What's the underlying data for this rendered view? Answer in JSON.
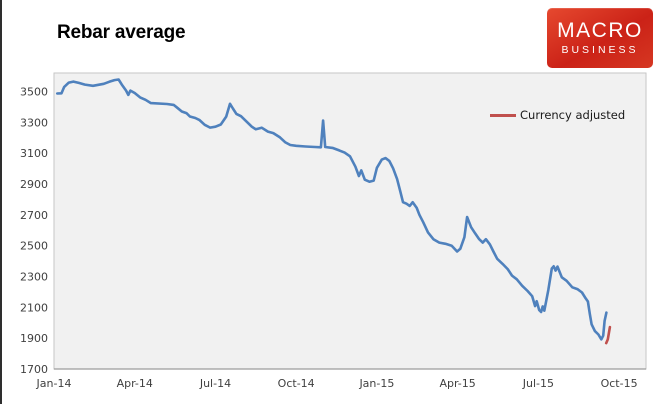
{
  "page": {
    "title": "Rebar average"
  },
  "logo": {
    "line1": "MACRO",
    "line2": "BUSINESS",
    "bg_color": "#cb2217",
    "text_color": "#ffffff"
  },
  "legend": {
    "label": "Currency adjusted",
    "color": "#c0504d"
  },
  "chart_data": {
    "type": "line",
    "title": "Rebar average",
    "xlabel": "",
    "ylabel": "",
    "grid": false,
    "legend_position": "inside-top-right",
    "plot_bg": "#f1f1f1",
    "plot_border": "#c6c6c6",
    "axis_text_color": "#3f3f3f",
    "x_range": [
      0,
      22
    ],
    "y_range": [
      1700,
      3620
    ],
    "x_unit": "months since Jan-2014",
    "x_ticks": [
      {
        "pos": 0,
        "label": "Jan-14"
      },
      {
        "pos": 3,
        "label": "Apr-14"
      },
      {
        "pos": 6,
        "label": "Jul-14"
      },
      {
        "pos": 9,
        "label": "Oct-14"
      },
      {
        "pos": 12,
        "label": "Jan-15"
      },
      {
        "pos": 15,
        "label": "Apr-15"
      },
      {
        "pos": 18,
        "label": "Jul-15"
      },
      {
        "pos": 21,
        "label": "Oct-15"
      }
    ],
    "y_ticks": [
      {
        "pos": 1700,
        "label": "1700"
      },
      {
        "pos": 1900,
        "label": "1900"
      },
      {
        "pos": 2100,
        "label": "2100"
      },
      {
        "pos": 2300,
        "label": "2300"
      },
      {
        "pos": 2500,
        "label": "2500"
      },
      {
        "pos": 2700,
        "label": "2700"
      },
      {
        "pos": 2900,
        "label": "2900"
      },
      {
        "pos": 3100,
        "label": "3100"
      },
      {
        "pos": 3300,
        "label": "3300"
      },
      {
        "pos": 3500,
        "label": "3500"
      }
    ],
    "series": [
      {
        "name": "Rebar average",
        "color": "#4f81bd",
        "width": 2.6,
        "points": [
          [
            0.12,
            3487
          ],
          [
            0.28,
            3488
          ],
          [
            0.38,
            3530
          ],
          [
            0.55,
            3558
          ],
          [
            0.72,
            3564
          ],
          [
            0.92,
            3556
          ],
          [
            1.15,
            3545
          ],
          [
            1.45,
            3537
          ],
          [
            1.85,
            3550
          ],
          [
            2.05,
            3563
          ],
          [
            2.25,
            3574
          ],
          [
            2.4,
            3578
          ],
          [
            2.52,
            3545
          ],
          [
            2.68,
            3506
          ],
          [
            2.76,
            3478
          ],
          [
            2.84,
            3506
          ],
          [
            3.0,
            3490
          ],
          [
            3.2,
            3462
          ],
          [
            3.4,
            3446
          ],
          [
            3.6,
            3425
          ],
          [
            4.2,
            3419
          ],
          [
            4.45,
            3413
          ],
          [
            4.6,
            3392
          ],
          [
            4.75,
            3370
          ],
          [
            4.92,
            3360
          ],
          [
            5.05,
            3338
          ],
          [
            5.25,
            3328
          ],
          [
            5.4,
            3316
          ],
          [
            5.6,
            3284
          ],
          [
            5.8,
            3266
          ],
          [
            6.0,
            3272
          ],
          [
            6.2,
            3286
          ],
          [
            6.4,
            3337
          ],
          [
            6.54,
            3420
          ],
          [
            6.65,
            3390
          ],
          [
            6.78,
            3355
          ],
          [
            6.95,
            3340
          ],
          [
            7.15,
            3306
          ],
          [
            7.35,
            3272
          ],
          [
            7.5,
            3255
          ],
          [
            7.72,
            3265
          ],
          [
            7.95,
            3240
          ],
          [
            8.15,
            3230
          ],
          [
            8.4,
            3202
          ],
          [
            8.6,
            3170
          ],
          [
            8.78,
            3153
          ],
          [
            9.0,
            3148
          ],
          [
            9.35,
            3143
          ],
          [
            9.7,
            3140
          ],
          [
            9.92,
            3138
          ],
          [
            10.0,
            3312
          ],
          [
            10.08,
            3140
          ],
          [
            10.35,
            3134
          ],
          [
            10.6,
            3118
          ],
          [
            10.8,
            3104
          ],
          [
            11.0,
            3080
          ],
          [
            11.2,
            3012
          ],
          [
            11.33,
            2952
          ],
          [
            11.42,
            2988
          ],
          [
            11.55,
            2928
          ],
          [
            11.72,
            2915
          ],
          [
            11.88,
            2922
          ],
          [
            12.0,
            3005
          ],
          [
            12.18,
            3058
          ],
          [
            12.32,
            3068
          ],
          [
            12.46,
            3050
          ],
          [
            12.6,
            3002
          ],
          [
            12.75,
            2932
          ],
          [
            12.87,
            2852
          ],
          [
            12.97,
            2782
          ],
          [
            13.1,
            2772
          ],
          [
            13.22,
            2758
          ],
          [
            13.33,
            2782
          ],
          [
            13.48,
            2745
          ],
          [
            13.58,
            2700
          ],
          [
            13.72,
            2652
          ],
          [
            13.9,
            2586
          ],
          [
            14.1,
            2542
          ],
          [
            14.32,
            2520
          ],
          [
            14.55,
            2512
          ],
          [
            14.78,
            2500
          ],
          [
            14.98,
            2462
          ],
          [
            15.1,
            2480
          ],
          [
            15.25,
            2555
          ],
          [
            15.35,
            2686
          ],
          [
            15.5,
            2620
          ],
          [
            15.65,
            2580
          ],
          [
            15.8,
            2542
          ],
          [
            15.93,
            2520
          ],
          [
            16.05,
            2542
          ],
          [
            16.2,
            2508
          ],
          [
            16.33,
            2462
          ],
          [
            16.47,
            2415
          ],
          [
            16.67,
            2382
          ],
          [
            16.86,
            2348
          ],
          [
            17.02,
            2306
          ],
          [
            17.2,
            2282
          ],
          [
            17.4,
            2240
          ],
          [
            17.6,
            2206
          ],
          [
            17.77,
            2172
          ],
          [
            17.88,
            2108
          ],
          [
            17.94,
            2140
          ],
          [
            18.03,
            2082
          ],
          [
            18.1,
            2070
          ],
          [
            18.16,
            2106
          ],
          [
            18.22,
            2078
          ],
          [
            18.37,
            2212
          ],
          [
            18.5,
            2352
          ],
          [
            18.57,
            2366
          ],
          [
            18.64,
            2338
          ],
          [
            18.71,
            2364
          ],
          [
            18.87,
            2295
          ],
          [
            19.05,
            2272
          ],
          [
            19.26,
            2230
          ],
          [
            19.45,
            2218
          ],
          [
            19.62,
            2196
          ],
          [
            19.76,
            2158
          ],
          [
            19.84,
            2138
          ],
          [
            19.91,
            2058
          ],
          [
            19.98,
            1990
          ],
          [
            20.1,
            1946
          ],
          [
            20.23,
            1924
          ],
          [
            20.34,
            1892
          ],
          [
            20.41,
            1916
          ],
          [
            20.46,
            2012
          ],
          [
            20.53,
            2066
          ]
        ]
      },
      {
        "name": "Currency adjusted",
        "color": "#c0504d",
        "width": 2.6,
        "points": [
          [
            20.52,
            1868
          ],
          [
            20.58,
            1892
          ],
          [
            20.66,
            1972
          ]
        ]
      }
    ]
  }
}
